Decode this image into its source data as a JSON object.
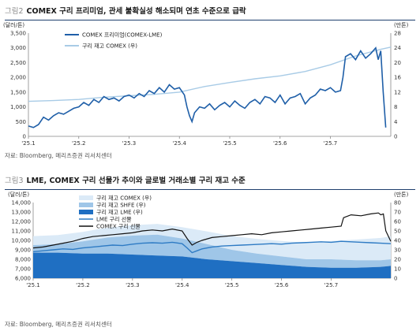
{
  "figure1": {
    "number": "그림2",
    "title": "COMEX 구리 프리미엄, 관세 불확실성 해소되며 연초 수준으로 급락",
    "source": "자료: Bloomberg, 메리츠증권 리서치센터",
    "colors": {
      "premium": "#1f5fa8",
      "inventory": "#a8cbe6"
    },
    "chart_data": {
      "type": "line",
      "left_unit": "(달러/톤)",
      "right_unit": "(만톤)",
      "x_ticks": [
        "'25.1",
        "'25.2",
        "'25.3",
        "'25.4",
        "'25.5",
        "'25.6",
        "'25.7"
      ],
      "y_left_ticks": [
        "0",
        "500",
        "1,000",
        "1,500",
        "2,000",
        "2,500",
        "3,000",
        "3,500"
      ],
      "y_right_ticks": [
        "0",
        "4",
        "8",
        "12",
        "16",
        "20",
        "24",
        "28"
      ],
      "ylim_left": [
        0,
        3500
      ],
      "ylim_right": [
        0,
        28
      ],
      "xlim": [
        0,
        7.2
      ],
      "series": [
        {
          "name": "COMEX 프리미엄(COMEX-LME)",
          "axis": "left",
          "x": [
            0.0,
            0.1,
            0.2,
            0.3,
            0.4,
            0.5,
            0.6,
            0.7,
            0.8,
            0.9,
            1.0,
            1.1,
            1.2,
            1.3,
            1.4,
            1.5,
            1.6,
            1.7,
            1.8,
            1.9,
            2.0,
            2.1,
            2.2,
            2.3,
            2.4,
            2.5,
            2.6,
            2.7,
            2.8,
            2.9,
            3.0,
            3.1,
            3.15,
            3.2,
            3.25,
            3.3,
            3.4,
            3.5,
            3.6,
            3.7,
            3.8,
            3.9,
            4.0,
            4.1,
            4.2,
            4.3,
            4.4,
            4.5,
            4.6,
            4.7,
            4.8,
            4.9,
            5.0,
            5.1,
            5.2,
            5.3,
            5.4,
            5.5,
            5.6,
            5.7,
            5.8,
            5.9,
            6.0,
            6.1,
            6.2,
            6.25,
            6.3,
            6.4,
            6.5,
            6.6,
            6.7,
            6.8,
            6.9,
            6.95,
            7.0,
            7.05,
            7.1
          ],
          "values": [
            350,
            300,
            400,
            650,
            550,
            700,
            800,
            750,
            850,
            950,
            1000,
            1150,
            1050,
            1250,
            1150,
            1350,
            1250,
            1300,
            1200,
            1350,
            1400,
            1300,
            1450,
            1350,
            1550,
            1450,
            1650,
            1500,
            1750,
            1600,
            1650,
            1400,
            1000,
            700,
            500,
            800,
            1000,
            950,
            1100,
            900,
            1050,
            1150,
            1000,
            1200,
            1050,
            950,
            1150,
            1250,
            1100,
            1350,
            1300,
            1150,
            1400,
            1100,
            1300,
            1350,
            1450,
            1100,
            1300,
            1400,
            1600,
            1550,
            1650,
            1500,
            1550,
            2000,
            2700,
            2800,
            2600,
            2900,
            2650,
            2800,
            3000,
            2600,
            2900,
            1500,
            300
          ]
        },
        {
          "name": "구리 재고 COMEX (우)",
          "axis": "right",
          "x": [
            0.0,
            0.5,
            1.0,
            1.5,
            2.0,
            2.5,
            3.0,
            3.5,
            4.0,
            4.5,
            5.0,
            5.5,
            6.0,
            6.5,
            7.0,
            7.2
          ],
          "values": [
            9.5,
            9.7,
            10.0,
            10.6,
            11.0,
            11.4,
            12.0,
            13.5,
            14.6,
            15.6,
            16.4,
            17.6,
            19.4,
            21.8,
            23.6,
            24.2
          ]
        }
      ]
    }
  },
  "figure2": {
    "number": "그림3",
    "title": "LME, COMEX 구리 선물가 추이와 글로벌 거래소별 구리 재고 수준",
    "source": "자료: Bloomberg, 메리츠증권 리서치센터",
    "colors": {
      "comex_inv": "#dbeaf7",
      "shfe_inv": "#9fc6e8",
      "lme_inv": "#1f6fc2",
      "lme_fut": "#2e7bc4",
      "comex_fut": "#111111"
    },
    "chart_data": {
      "type": "area",
      "left_unit": "(달러/톤)",
      "right_unit": "(만톤)",
      "x_ticks": [
        "'25.1",
        "'25.2",
        "'25.3",
        "'25.4",
        "'25.5",
        "'25.6",
        "'25.7"
      ],
      "y_left_ticks": [
        "6,000",
        "7,000",
        "8,000",
        "9,000",
        "10,000",
        "11,000",
        "12,000",
        "13,000",
        "14,000"
      ],
      "y_right_ticks": [
        "0",
        "10",
        "20",
        "30",
        "40",
        "50",
        "60",
        "70",
        "80"
      ],
      "ylim_left": [
        6000,
        14000
      ],
      "ylim_right": [
        0,
        80
      ],
      "xlim": [
        0,
        7.2
      ],
      "series": [
        {
          "name": "구리 재고 COMEX (우)",
          "axis": "right",
          "stack": true,
          "x": [
            0.0,
            0.5,
            1.0,
            1.5,
            2.0,
            2.5,
            3.0,
            3.5,
            4.0,
            4.5,
            5.0,
            5.5,
            6.0,
            6.5,
            7.0,
            7.2
          ],
          "values": [
            9.5,
            9.7,
            10.0,
            10.6,
            11.0,
            11.4,
            12.0,
            13.5,
            14.6,
            15.6,
            16.4,
            17.6,
            19.4,
            21.8,
            23.6,
            24.2
          ]
        },
        {
          "name": "구리 재고 SHFE (우)",
          "axis": "right",
          "stack": true,
          "x": [
            0.0,
            0.5,
            1.0,
            1.5,
            2.0,
            2.5,
            3.0,
            3.5,
            4.0,
            4.5,
            5.0,
            5.5,
            6.0,
            6.5,
            7.0,
            7.2
          ],
          "values": [
            8,
            9,
            13,
            17,
            20,
            22,
            19,
            16,
            12,
            10,
            9,
            8,
            9,
            8,
            7,
            7
          ]
        },
        {
          "name": "구리 재고 LME (우)",
          "axis": "right",
          "stack": true,
          "x": [
            0.0,
            0.5,
            1.0,
            1.5,
            2.0,
            2.5,
            3.0,
            3.5,
            4.0,
            4.5,
            5.0,
            5.5,
            6.0,
            6.5,
            7.0,
            7.2
          ],
          "values": [
            27,
            27,
            26,
            26,
            25,
            24,
            23,
            20,
            18,
            16,
            14,
            12,
            11,
            11,
            12,
            13
          ]
        },
        {
          "name": "LME 구리 선물",
          "axis": "left",
          "x": [
            0.0,
            0.2,
            0.4,
            0.6,
            0.8,
            1.0,
            1.2,
            1.4,
            1.6,
            1.8,
            2.0,
            2.2,
            2.4,
            2.6,
            2.8,
            3.0,
            3.1,
            3.2,
            3.3,
            3.4,
            3.6,
            3.8,
            4.0,
            4.2,
            4.4,
            4.6,
            4.8,
            5.0,
            5.2,
            5.4,
            5.6,
            5.8,
            6.0,
            6.2,
            6.4,
            6.6,
            6.8,
            7.0,
            7.2
          ],
          "values": [
            8800,
            8900,
            9000,
            9100,
            9050,
            9200,
            9300,
            9400,
            9500,
            9450,
            9600,
            9700,
            9750,
            9700,
            9800,
            9650,
            9200,
            8700,
            8900,
            9100,
            9300,
            9400,
            9450,
            9500,
            9550,
            9600,
            9650,
            9600,
            9700,
            9750,
            9800,
            9850,
            9800,
            9900,
            9850,
            9800,
            9750,
            9700,
            9650
          ]
        },
        {
          "name": "COMEX 구리 선물",
          "axis": "left",
          "x": [
            0.0,
            0.2,
            0.4,
            0.6,
            0.8,
            1.0,
            1.2,
            1.4,
            1.6,
            1.8,
            2.0,
            2.2,
            2.4,
            2.6,
            2.8,
            3.0,
            3.1,
            3.2,
            3.3,
            3.4,
            3.6,
            3.8,
            4.0,
            4.2,
            4.4,
            4.6,
            4.8,
            5.0,
            5.2,
            5.4,
            5.6,
            5.8,
            6.0,
            6.2,
            6.25,
            6.4,
            6.6,
            6.8,
            6.95,
            7.0,
            7.05,
            7.1,
            7.2
          ],
          "values": [
            9200,
            9300,
            9500,
            9700,
            9900,
            10200,
            10400,
            10500,
            10600,
            10700,
            10800,
            11000,
            11100,
            11000,
            11200,
            11000,
            10200,
            9500,
            9800,
            10000,
            10300,
            10400,
            10500,
            10600,
            10700,
            10600,
            10800,
            10900,
            11000,
            11100,
            11200,
            11300,
            11400,
            11500,
            12400,
            12700,
            12600,
            12800,
            12900,
            12700,
            12800,
            11000,
            9900
          ]
        }
      ]
    }
  }
}
